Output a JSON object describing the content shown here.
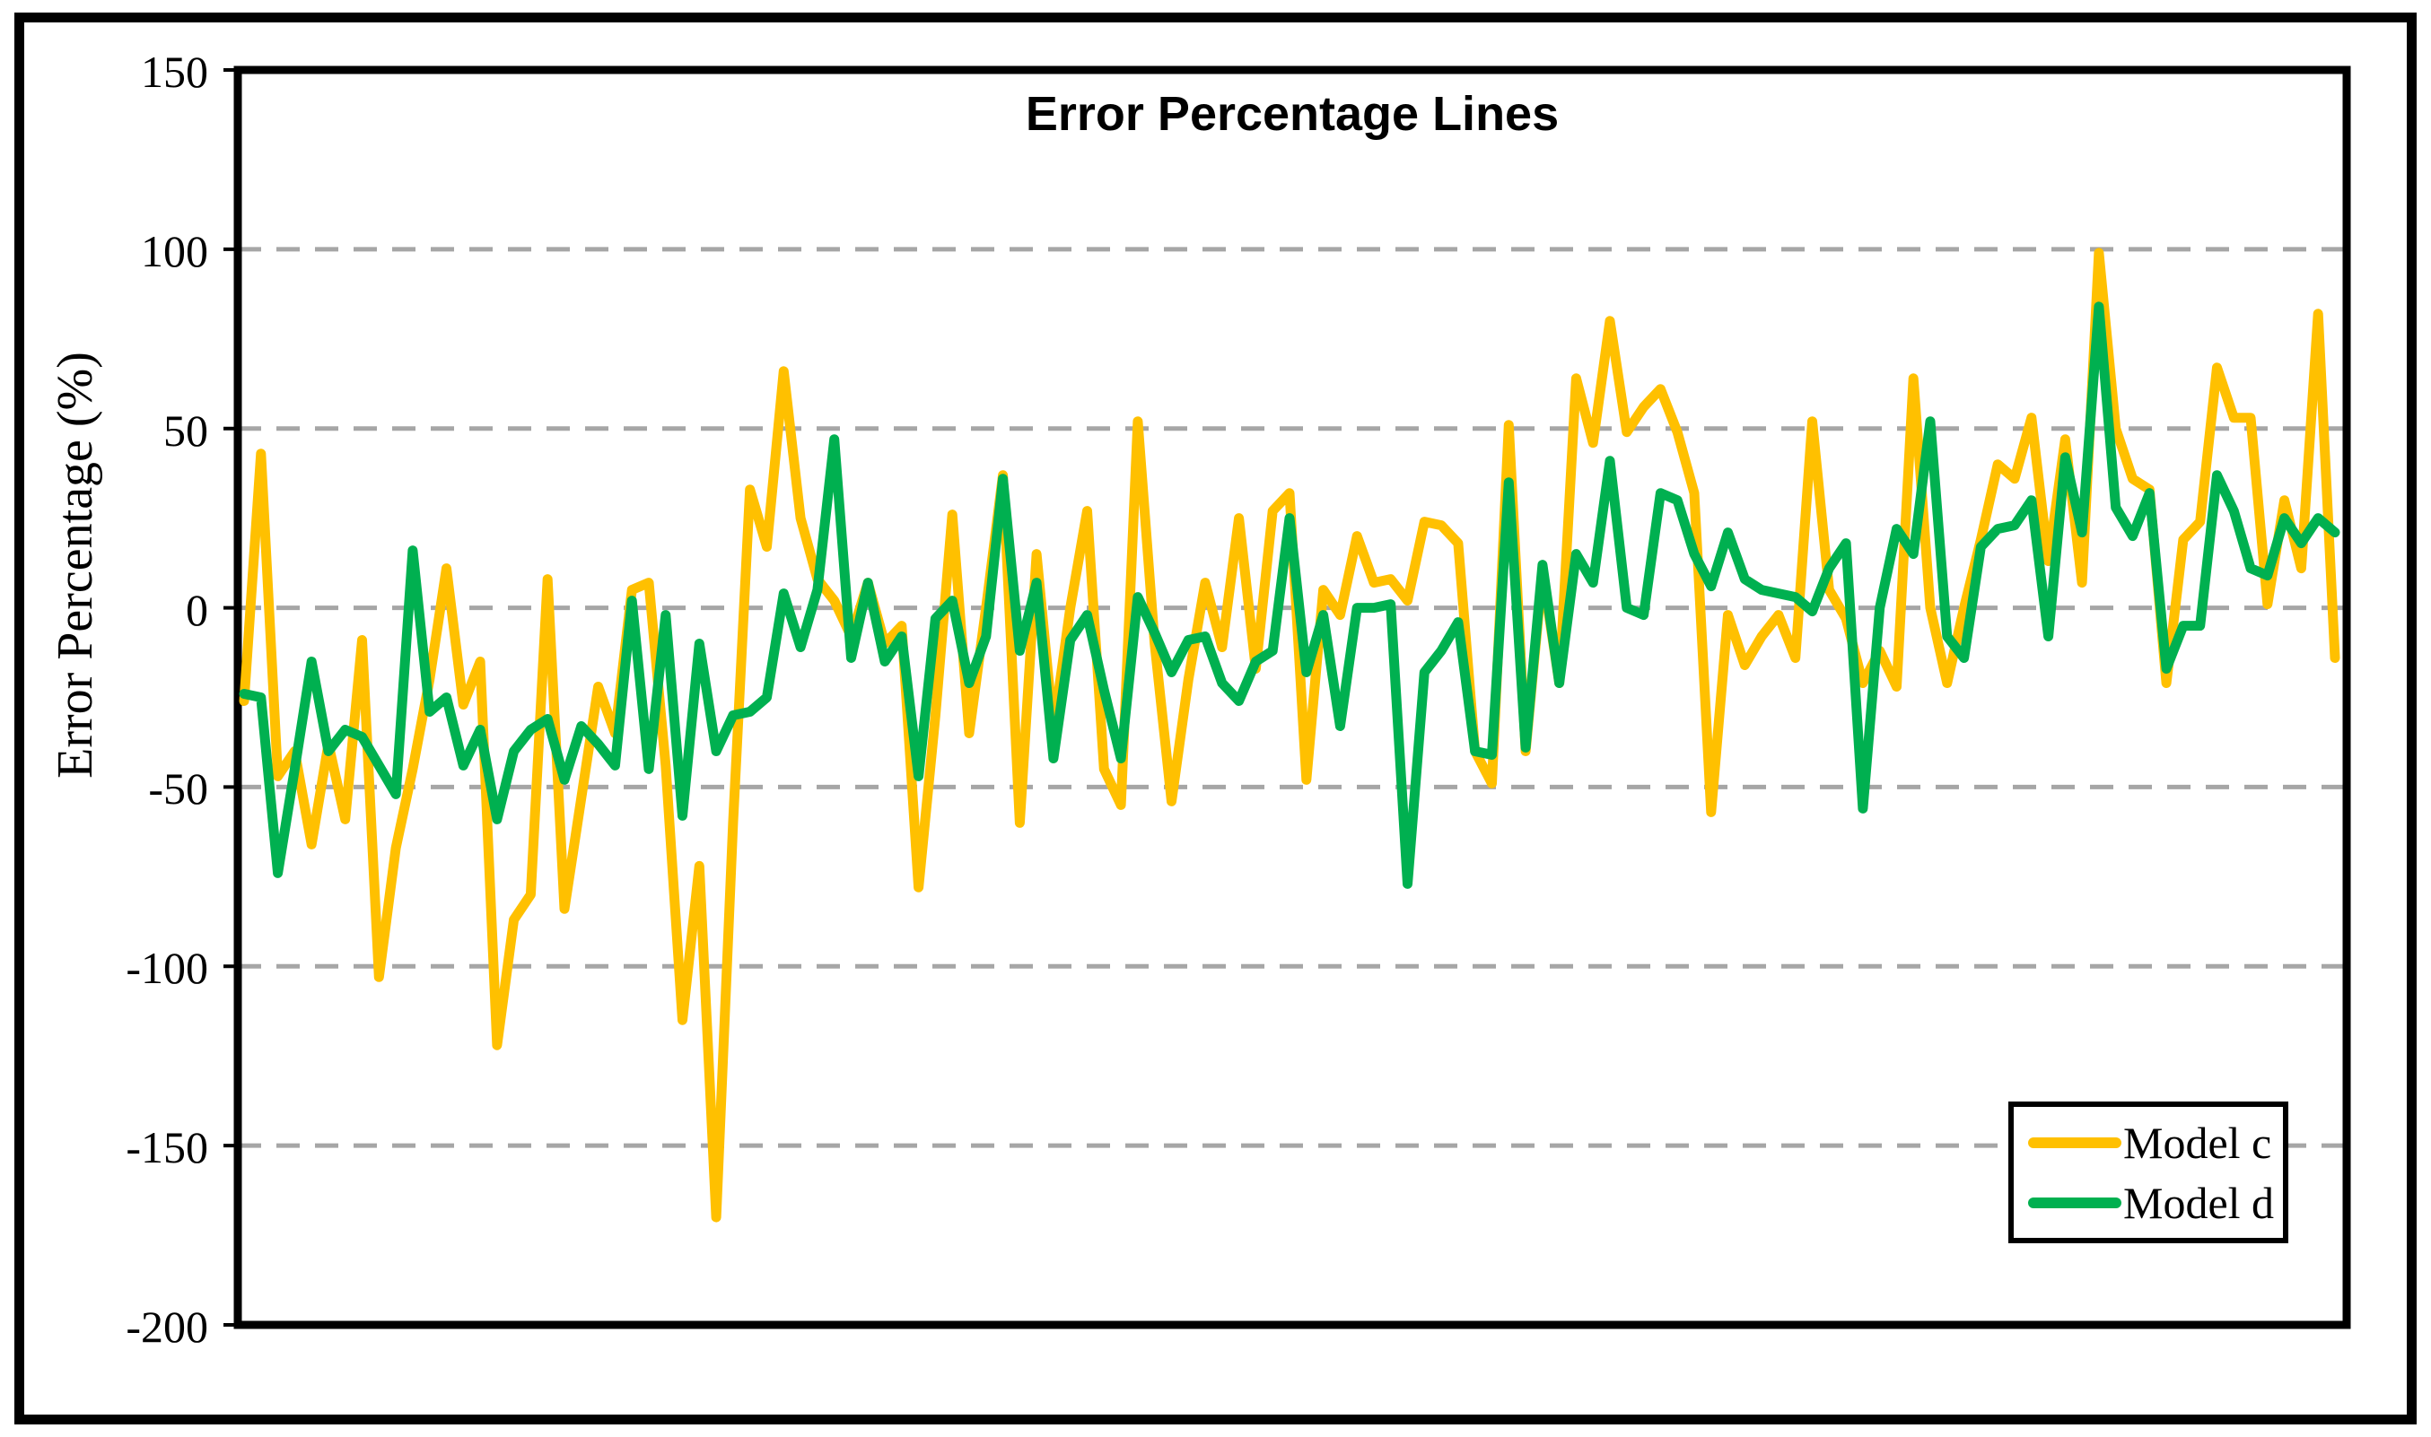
{
  "chart_data": {
    "type": "line",
    "title": "Error Percentage Lines",
    "xlabel": "",
    "ylabel": "Error Percentage (%)",
    "ylim": [
      -200,
      150
    ],
    "y_ticks": [
      150,
      100,
      50,
      0,
      -50,
      -100,
      -150,
      -200
    ],
    "gridlines": [
      100,
      50,
      0,
      -50,
      -100,
      -150
    ],
    "grid_style": "dashed horizontal",
    "gridline_color": "#A6A6A6",
    "axis_frame_color": "#000000",
    "legend_position": "bottom-right",
    "n_points": 125,
    "x_axis_labels": "none visible",
    "series": [
      {
        "name": "Model c",
        "color": "#FFC000",
        "values": [
          -26,
          43,
          -47,
          -40,
          -66,
          -38,
          -59,
          -9,
          -103,
          -67,
          -45,
          -20,
          11,
          -27,
          -15,
          -122,
          -87,
          -80,
          8,
          -84,
          -53,
          -22,
          -35,
          5,
          7,
          -44,
          -115,
          -72,
          -170,
          -60,
          33,
          17,
          66,
          25,
          8,
          2,
          -8,
          7,
          -10,
          -5,
          -78,
          -30,
          26,
          -35,
          0,
          37,
          -60,
          15,
          -34,
          0,
          27,
          -45,
          -55,
          52,
          -10,
          -54,
          -20,
          7,
          -11,
          25,
          -17,
          27,
          32,
          -48,
          5,
          -2,
          20,
          7,
          8,
          2,
          24,
          23,
          18,
          -40,
          -49,
          51,
          -40,
          10,
          -21,
          64,
          46,
          80,
          49,
          56,
          61,
          49,
          32,
          -57,
          -2,
          -16,
          -8,
          -2,
          -14,
          52,
          5,
          -3,
          -21,
          -12,
          -22,
          64,
          0,
          -21,
          0,
          19,
          40,
          36,
          53,
          13,
          47,
          7,
          99,
          50,
          36,
          33,
          -21,
          19,
          24,
          67,
          53,
          53,
          1,
          30,
          11,
          82,
          -14
        ]
      },
      {
        "name": "Model d",
        "color": "#00B050",
        "values": [
          -24,
          -25,
          -74,
          -45,
          -15,
          -40,
          -34,
          -36,
          -44,
          -52,
          16,
          -29,
          -25,
          -44,
          -34,
          -59,
          -40,
          -34,
          -31,
          -48,
          -33,
          -38,
          -44,
          2,
          -45,
          -2,
          -58,
          -10,
          -40,
          -30,
          -29,
          -25,
          4,
          -11,
          5,
          47,
          -14,
          7,
          -15,
          -8,
          -47,
          -3,
          2,
          -21,
          -8,
          36,
          -12,
          7,
          -42,
          -9,
          -2,
          -23,
          -42,
          3,
          -7,
          -18,
          -9,
          -8,
          -21,
          -26,
          -15,
          -12,
          25,
          -18,
          -2,
          -33,
          0,
          0,
          1,
          -77,
          -18,
          -12,
          -4,
          -40,
          -41,
          35,
          -39,
          12,
          -21,
          15,
          7,
          41,
          0,
          -2,
          32,
          30,
          15,
          6,
          21,
          8,
          5,
          4,
          3,
          -1,
          11,
          18,
          -56,
          0,
          22,
          15,
          52,
          -8,
          -14,
          17,
          22,
          23,
          30,
          -8,
          42,
          21,
          84,
          28,
          20,
          32,
          -17,
          -5,
          -5,
          37,
          27,
          11,
          9,
          25,
          18,
          25,
          21
        ]
      }
    ]
  }
}
